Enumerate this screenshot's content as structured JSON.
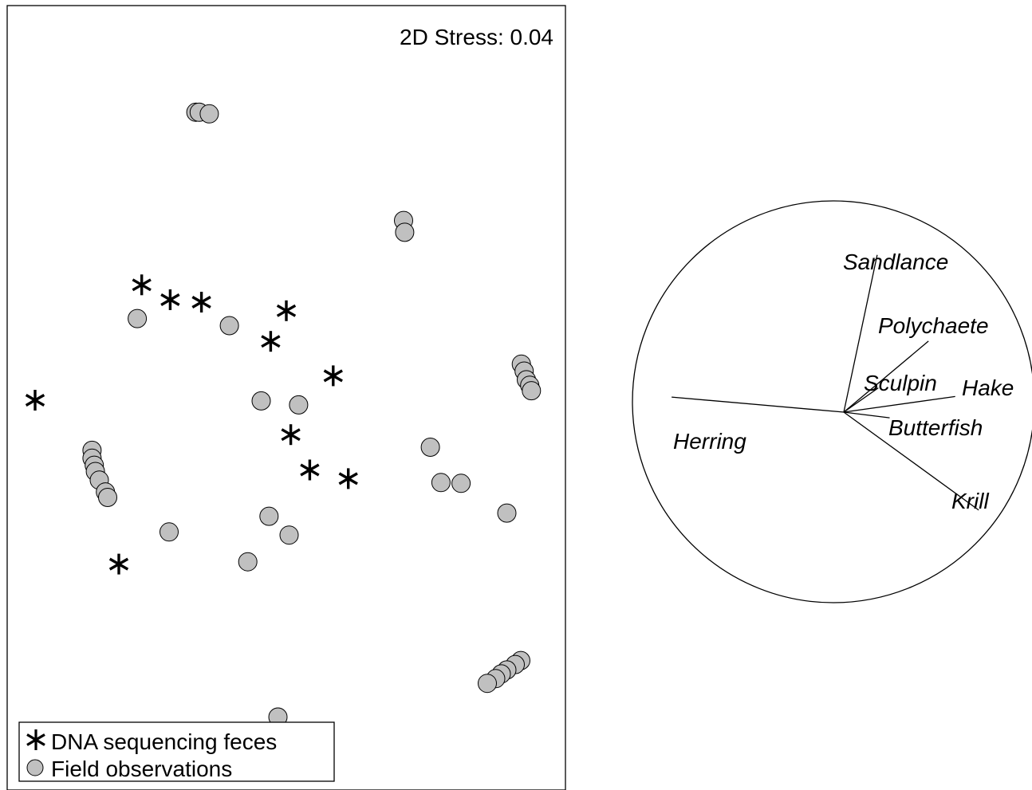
{
  "stress_label": "2D Stress: 0.04",
  "legend": {
    "dna": "DNA sequencing feces",
    "field": "Field observations"
  },
  "colors": {
    "marker_fill": "#c0c0c0",
    "ink": "#000000"
  },
  "chart_data": [
    {
      "type": "scatter",
      "title": "",
      "xlabel": "",
      "ylabel": "",
      "xlim": [
        0,
        100
      ],
      "ylim": [
        0,
        100
      ],
      "grid": false,
      "legend_position": "bottom-left",
      "series": [
        {
          "name": "DNA sequencing feces",
          "marker": "asterisk",
          "points": [
            [
              24.1,
              64.4
            ],
            [
              29.2,
              62.5
            ],
            [
              34.8,
              62.2
            ],
            [
              50.0,
              61.1
            ],
            [
              47.2,
              57.2
            ],
            [
              58.4,
              52.8
            ],
            [
              5.0,
              49.7
            ],
            [
              50.8,
              45.3
            ],
            [
              54.2,
              40.8
            ],
            [
              61.1,
              39.7
            ],
            [
              20.0,
              28.8
            ]
          ]
        },
        {
          "name": "Field observations",
          "marker": "circle",
          "points": [
            [
              33.8,
              86.4
            ],
            [
              34.4,
              86.4
            ],
            [
              36.2,
              86.2
            ],
            [
              71.0,
              72.6
            ],
            [
              71.2,
              71.1
            ],
            [
              23.3,
              60.1
            ],
            [
              39.8,
              59.2
            ],
            [
              92.1,
              54.3
            ],
            [
              92.6,
              53.4
            ],
            [
              93.0,
              52.3
            ],
            [
              93.6,
              51.6
            ],
            [
              93.9,
              50.9
            ],
            [
              45.5,
              49.6
            ],
            [
              52.2,
              49.1
            ],
            [
              15.2,
              43.3
            ],
            [
              15.2,
              42.3
            ],
            [
              15.6,
              41.4
            ],
            [
              15.8,
              40.6
            ],
            [
              16.5,
              39.5
            ],
            [
              17.6,
              38.0
            ],
            [
              18.0,
              37.3
            ],
            [
              75.8,
              43.7
            ],
            [
              77.7,
              39.2
            ],
            [
              81.3,
              39.1
            ],
            [
              89.5,
              35.3
            ],
            [
              46.9,
              34.9
            ],
            [
              29.0,
              32.9
            ],
            [
              50.5,
              32.5
            ],
            [
              43.1,
              29.1
            ],
            [
              92.0,
              16.5
            ],
            [
              91.0,
              16.0
            ],
            [
              89.5,
              15.3
            ],
            [
              88.5,
              14.8
            ],
            [
              87.5,
              14.2
            ],
            [
              86.0,
              13.6
            ],
            [
              48.5,
              9.3
            ]
          ]
        }
      ]
    },
    {
      "type": "vector_circle",
      "vectors": [
        {
          "name": "Sandlance",
          "angle_deg": 78.0,
          "length": 0.8
        },
        {
          "name": "Polychaete",
          "angle_deg": 40.0,
          "length": 0.55
        },
        {
          "name": "Sculpin",
          "angle_deg": 35.0,
          "length": 0.21
        },
        {
          "name": "Hake",
          "angle_deg": 8.0,
          "length": 0.56
        },
        {
          "name": "Butterfish",
          "angle_deg": -7.0,
          "length": 0.23
        },
        {
          "name": "Krill",
          "angle_deg": -36.0,
          "length": 0.83
        },
        {
          "name": "Herring",
          "angle_deg": 175.0,
          "length": 0.86
        }
      ]
    }
  ]
}
